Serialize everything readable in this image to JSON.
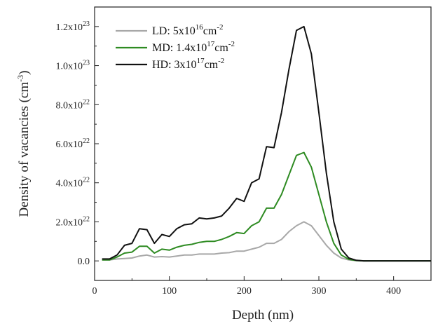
{
  "chart_data": {
    "type": "line",
    "title": "",
    "xlabel": "Depth (nm)",
    "ylabel_main": "Density of vacancies (cm",
    "ylabel_exp": "-3",
    "ylabel_close": ")",
    "xlim": [
      0,
      450
    ],
    "ylim": [
      -1e+22,
      1.3e+23
    ],
    "x_ticks": [
      0,
      100,
      200,
      300,
      400
    ],
    "x_tick_labels": [
      "0",
      "100",
      "200",
      "300",
      "400"
    ],
    "y_ticks": [
      0,
      2e+22,
      4e+22,
      6e+22,
      8e+22,
      1e+23,
      1.2e+23
    ],
    "y_tick_labels": [
      {
        "mantissa": "0.0",
        "exp": ""
      },
      {
        "mantissa": "2.0x10",
        "exp": "22"
      },
      {
        "mantissa": "4.0x10",
        "exp": "22"
      },
      {
        "mantissa": "6.0x10",
        "exp": "22"
      },
      {
        "mantissa": "8.0x10",
        "exp": "22"
      },
      {
        "mantissa": "1.0x10",
        "exp": "23"
      },
      {
        "mantissa": "1.2x10",
        "exp": "23"
      }
    ],
    "grid": false,
    "legend_position": "top-left",
    "series": [
      {
        "name": "LD",
        "legend": {
          "prefix": "LD: 5x10",
          "exp1": "16",
          "mid": "cm",
          "exp2": "-2"
        },
        "color": "#a8a8a8",
        "x": [
          10,
          20,
          30,
          40,
          50,
          60,
          70,
          80,
          90,
          100,
          110,
          120,
          130,
          140,
          150,
          160,
          170,
          180,
          190,
          200,
          210,
          220,
          230,
          240,
          250,
          260,
          270,
          280,
          290,
          300,
          310,
          320,
          330,
          340,
          350,
          360,
          370,
          380,
          390,
          400,
          410,
          420,
          430,
          440,
          450
        ],
        "y": [
          5e+20,
          5e+20,
          1e+21,
          1.2e+21,
          1.5e+21,
          2.5e+21,
          3e+21,
          2e+21,
          2.2e+21,
          2e+21,
          2.5e+21,
          3e+21,
          3e+21,
          3.5e+21,
          3.5e+21,
          3.5e+21,
          4e+21,
          4.2e+21,
          5e+21,
          5e+21,
          6e+21,
          7e+21,
          9e+21,
          9e+21,
          1.1e+22,
          1.5e+22,
          1.8e+22,
          2e+22,
          1.8e+22,
          1.3e+22,
          8e+21,
          4e+21,
          1.5e+21,
          5e+20,
          2e+20,
          0,
          0,
          0,
          0,
          0,
          0,
          0,
          0,
          0,
          0
        ]
      },
      {
        "name": "MD",
        "legend": {
          "prefix": "MD: 1.4x10",
          "exp1": "17",
          "mid": "cm",
          "exp2": "-2"
        },
        "color": "#2e8b22",
        "x": [
          10,
          20,
          30,
          40,
          50,
          60,
          70,
          80,
          90,
          100,
          110,
          120,
          130,
          140,
          150,
          160,
          170,
          180,
          190,
          200,
          210,
          220,
          230,
          240,
          250,
          260,
          270,
          280,
          290,
          300,
          310,
          320,
          330,
          340,
          350,
          360,
          370,
          380,
          390,
          400,
          410,
          420,
          430,
          440,
          450
        ],
        "y": [
          5e+20,
          5e+20,
          2e+21,
          4e+21,
          4.5e+21,
          7.5e+21,
          7.5e+21,
          4e+21,
          6e+21,
          5.5e+21,
          7e+21,
          8e+21,
          8.5e+21,
          9.5e+21,
          1e+22,
          1e+22,
          1.1e+22,
          1.25e+22,
          1.45e+22,
          1.4e+22,
          1.8e+22,
          2e+22,
          2.7e+22,
          2.7e+22,
          3.4e+22,
          4.4e+22,
          5.4e+22,
          5.55e+22,
          4.8e+22,
          3.4e+22,
          2e+22,
          9e+21,
          3e+21,
          8e+20,
          2e+20,
          0,
          0,
          0,
          0,
          0,
          0,
          0,
          0,
          0,
          0
        ]
      },
      {
        "name": "HD",
        "legend": {
          "prefix": "HD: 3x10",
          "exp1": "17",
          "mid": "cm",
          "exp2": "-2"
        },
        "color": "#111111",
        "x": [
          10,
          20,
          30,
          40,
          50,
          60,
          70,
          80,
          90,
          100,
          110,
          120,
          130,
          140,
          150,
          160,
          170,
          180,
          190,
          200,
          210,
          220,
          230,
          240,
          250,
          260,
          270,
          280,
          290,
          300,
          310,
          320,
          330,
          340,
          350,
          360,
          370,
          380,
          390,
          400,
          410,
          420,
          430,
          440,
          450
        ],
        "y": [
          1e+21,
          1e+21,
          3e+21,
          8e+21,
          9e+21,
          1.65e+22,
          1.6e+22,
          9e+21,
          1.35e+22,
          1.25e+22,
          1.65e+22,
          1.85e+22,
          1.9e+22,
          2.2e+22,
          2.15e+22,
          2.2e+22,
          2.3e+22,
          2.7e+22,
          3.2e+22,
          3.05e+22,
          4e+22,
          4.2e+22,
          5.85e+22,
          5.8e+22,
          7.6e+22,
          9.8e+22,
          1.18e+23,
          1.2e+23,
          1.06e+23,
          7.6e+22,
          4.5e+22,
          2e+22,
          6e+21,
          1.5e+21,
          3e+20,
          0,
          0,
          0,
          0,
          0,
          0,
          0,
          0,
          0,
          0
        ]
      }
    ]
  }
}
